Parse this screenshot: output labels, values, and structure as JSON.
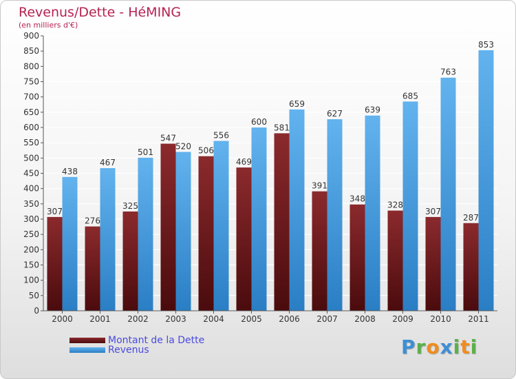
{
  "chart_data": {
    "type": "bar",
    "title": "Revenus/Dette - HéMING",
    "subtitle": "(en milliers d'€)",
    "categories": [
      "2000",
      "2001",
      "2002",
      "2003",
      "2004",
      "2005",
      "2006",
      "2007",
      "2008",
      "2009",
      "2010",
      "2011"
    ],
    "series": [
      {
        "name": "Montant de la Dette",
        "color": "#7a1f22",
        "values": [
          307,
          276,
          325,
          547,
          506,
          469,
          581,
          391,
          348,
          328,
          307,
          287
        ]
      },
      {
        "name": "Revenus",
        "color": "#4aa3e6",
        "values": [
          438,
          467,
          501,
          520,
          556,
          600,
          659,
          627,
          639,
          685,
          763,
          853
        ]
      }
    ],
    "ylim": [
      0,
      900
    ],
    "yticks": [
      0,
      50,
      100,
      150,
      200,
      250,
      300,
      350,
      400,
      450,
      500,
      550,
      600,
      650,
      700,
      750,
      800,
      850,
      900
    ],
    "grid": true,
    "legend_position": "bottom-left"
  },
  "brand": {
    "letters": [
      {
        "ch": "P",
        "color": "#3d8fd6"
      },
      {
        "ch": "r",
        "color": "#5bb04a"
      },
      {
        "ch": "o",
        "color": "#f08c1e"
      },
      {
        "ch": "x",
        "color": "#3d8fd6"
      },
      {
        "ch": "i",
        "color": "#5bb04a"
      },
      {
        "ch": "t",
        "color": "#f08c1e"
      },
      {
        "ch": "i",
        "color": "#5bb04a"
      }
    ]
  }
}
